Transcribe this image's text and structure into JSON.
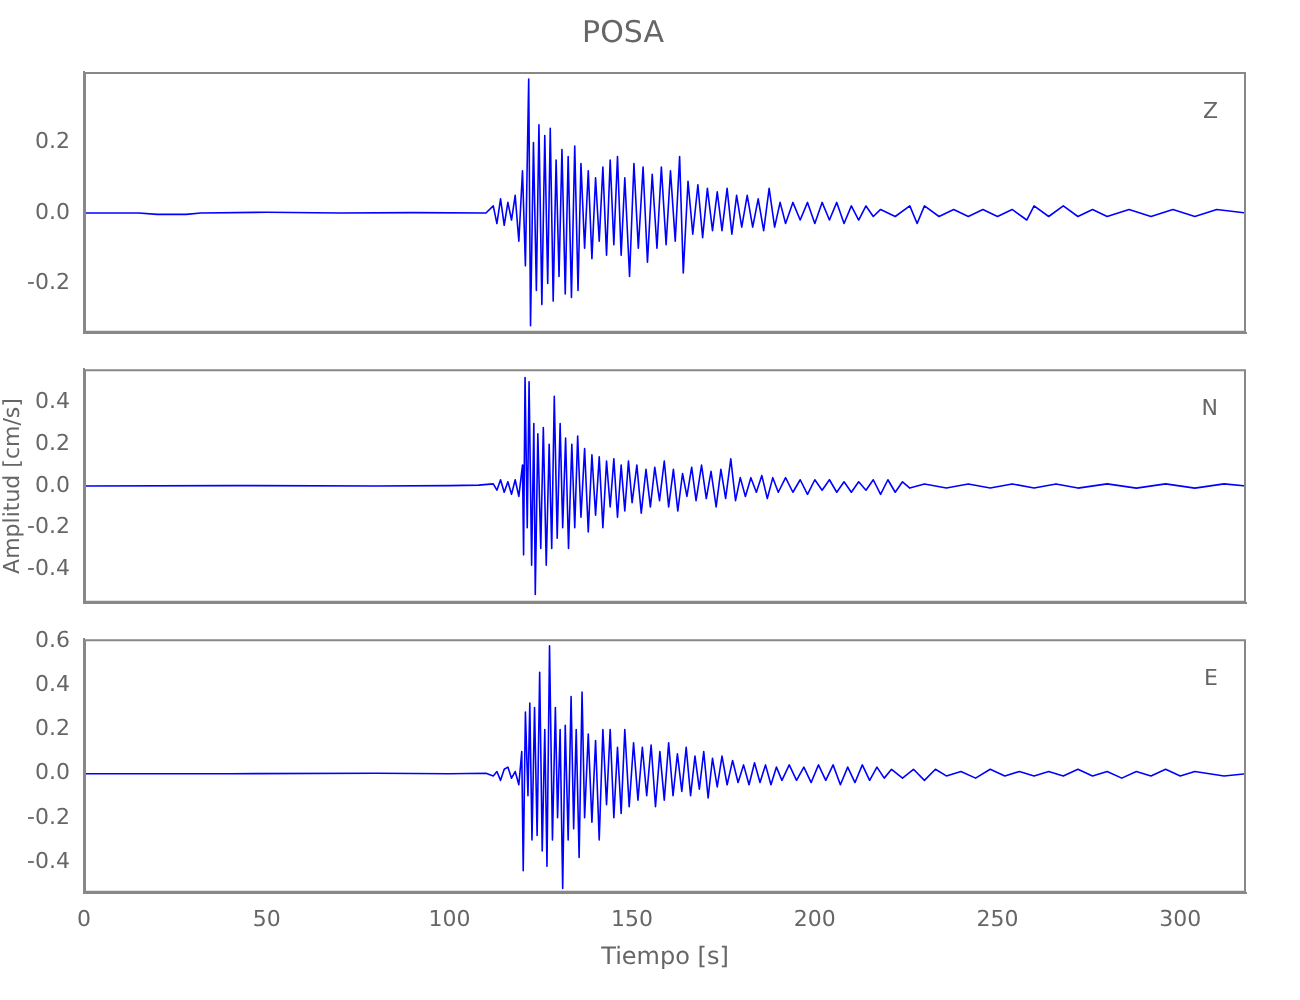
{
  "chart_data": [
    {
      "type": "line",
      "title": "POSA",
      "annotations": [
        "Z"
      ],
      "tick_labels": "y",
      "xlim": [
        0,
        318
      ],
      "xticks": [
        0,
        50,
        100,
        150,
        200,
        250,
        300
      ],
      "ylim": [
        -0.34,
        0.4
      ],
      "yticks": [
        {
          "value": -0.2,
          "label": "-0.2"
        },
        {
          "value": 0,
          "label": "0.0"
        },
        {
          "value": 0.2,
          "label": "0.2"
        }
      ],
      "series": [
        {
          "color": "#0000ff",
          "x": [
            0,
            15,
            20,
            28,
            32,
            50,
            70,
            90,
            110,
            112,
            113,
            114,
            115,
            116,
            117,
            118,
            119,
            120,
            120.8,
            121.7,
            122.2,
            123,
            123.8,
            124.5,
            125.3,
            126.1,
            126.9,
            127.6,
            128.4,
            129.2,
            130,
            130.8,
            131.7,
            132.5,
            133.4,
            134.3,
            135.2,
            136,
            137,
            138,
            139,
            140,
            141,
            142,
            143,
            144,
            145,
            146,
            147,
            148,
            149.3,
            150.5,
            151.7,
            153,
            154.2,
            155.5,
            156.8,
            158,
            159.3,
            160.5,
            161.8,
            163,
            164,
            165.3,
            166.6,
            168,
            169.3,
            170.6,
            172,
            173.3,
            174.6,
            176,
            177.3,
            178.6,
            180,
            181.5,
            183,
            184.5,
            186,
            187.5,
            189,
            190.5,
            192,
            194,
            196,
            198,
            200,
            202,
            204,
            206,
            208,
            210,
            212,
            214,
            216,
            218,
            222,
            226,
            228,
            230,
            234,
            238,
            242,
            246,
            250,
            254,
            258,
            260,
            264,
            268,
            272,
            276,
            280,
            286,
            292,
            298,
            304,
            310,
            318
          ],
          "values": [
            0,
            0,
            -0.004,
            -0.004,
            0,
            0.002,
            0,
            0.001,
            0,
            0.02,
            -0.03,
            0.04,
            -0.035,
            0.03,
            -0.02,
            0.05,
            -0.08,
            0.12,
            -0.15,
            0.38,
            -0.32,
            0.2,
            -0.22,
            0.25,
            -0.26,
            0.22,
            -0.2,
            0.24,
            -0.25,
            0.15,
            -0.18,
            0.18,
            -0.23,
            0.16,
            -0.24,
            0.19,
            -0.22,
            0.14,
            -0.1,
            0.12,
            -0.13,
            0.1,
            -0.08,
            0.13,
            -0.12,
            0.15,
            -0.09,
            0.16,
            -0.12,
            0.1,
            -0.18,
            0.14,
            -0.1,
            0.13,
            -0.14,
            0.11,
            -0.1,
            0.13,
            -0.09,
            0.12,
            -0.08,
            0.16,
            -0.17,
            0.09,
            -0.06,
            0.08,
            -0.07,
            0.07,
            -0.05,
            0.06,
            -0.05,
            0.07,
            -0.06,
            0.05,
            -0.04,
            0.05,
            -0.04,
            0.04,
            -0.05,
            0.07,
            -0.04,
            0.03,
            -0.03,
            0.03,
            -0.02,
            0.03,
            -0.03,
            0.03,
            -0.02,
            0.03,
            -0.03,
            0.02,
            -0.02,
            0.02,
            -0.01,
            0.01,
            -0.01,
            0.02,
            -0.03,
            0.02,
            -0.01,
            0.01,
            -0.01,
            0.01,
            -0.01,
            0.01,
            -0.02,
            0.02,
            -0.01,
            0.02,
            -0.01,
            0.01,
            -0.01,
            0.01,
            -0.01,
            0.01,
            -0.01,
            0.01,
            0
          ]
        }
      ]
    },
    {
      "type": "line",
      "ylabel": "Amplitud [cm/s]",
      "annotations": [
        "N"
      ],
      "tick_labels": "y",
      "xlim": [
        0,
        318
      ],
      "xticks": [
        0,
        50,
        100,
        150,
        200,
        250,
        300
      ],
      "ylim": [
        -0.56,
        0.56
      ],
      "yticks": [
        {
          "value": -0.4,
          "label": "-0.4"
        },
        {
          "value": -0.2,
          "label": "-0.2"
        },
        {
          "value": 0,
          "label": "0.0"
        },
        {
          "value": 0.2,
          "label": "0.2"
        },
        {
          "value": 0.4,
          "label": "0.4"
        }
      ],
      "series": [
        {
          "color": "#0000ff",
          "x": [
            0,
            40,
            80,
            100,
            108,
            112,
            113,
            114,
            115,
            116,
            117,
            118,
            119,
            120,
            120.3,
            120.7,
            121.3,
            121.8,
            122.5,
            123.1,
            123.5,
            124.2,
            125,
            125.7,
            126.5,
            127.3,
            128,
            128.7,
            129.5,
            130.3,
            131,
            131.8,
            132.6,
            133.5,
            134.3,
            135.1,
            136,
            137,
            138,
            139,
            140,
            141,
            142,
            143,
            144,
            145,
            146,
            147,
            148,
            149,
            150,
            151.3,
            152.5,
            153.8,
            155,
            156.2,
            157.5,
            158.8,
            160,
            161.3,
            162.5,
            163.8,
            165,
            166.3,
            167.5,
            169,
            170.3,
            171.6,
            173,
            174.3,
            175.6,
            177,
            178.3,
            179.6,
            181,
            182.5,
            184,
            185.5,
            187,
            188.5,
            190,
            192,
            194,
            196,
            198,
            200,
            202,
            204,
            206,
            208,
            210,
            212,
            214,
            216,
            218,
            220,
            222,
            224,
            226,
            230,
            236,
            242,
            248,
            254,
            260,
            266,
            272,
            280,
            288,
            296,
            304,
            312,
            318
          ],
          "values": [
            0,
            0.002,
            0,
            0.002,
            0.004,
            0.01,
            -0.02,
            0.03,
            -0.03,
            0.02,
            -0.04,
            0.03,
            -0.05,
            0.1,
            -0.33,
            0.52,
            -0.2,
            0.5,
            -0.38,
            0.3,
            -0.52,
            0.25,
            -0.3,
            0.28,
            -0.38,
            0.2,
            -0.3,
            0.43,
            -0.25,
            0.3,
            -0.2,
            0.23,
            -0.3,
            0.2,
            -0.2,
            0.24,
            -0.15,
            0.18,
            -0.22,
            0.15,
            -0.14,
            0.14,
            -0.2,
            0.12,
            -0.1,
            0.13,
            -0.15,
            0.1,
            -0.12,
            0.12,
            -0.08,
            0.1,
            -0.13,
            0.08,
            -0.1,
            0.09,
            -0.07,
            0.12,
            -0.1,
            0.08,
            -0.12,
            0.06,
            -0.05,
            0.09,
            -0.07,
            0.1,
            -0.06,
            0.07,
            -0.1,
            0.08,
            -0.06,
            0.13,
            -0.07,
            0.04,
            -0.05,
            0.04,
            -0.03,
            0.05,
            -0.06,
            0.04,
            -0.03,
            0.04,
            -0.03,
            0.03,
            -0.04,
            0.03,
            -0.02,
            0.03,
            -0.03,
            0.02,
            -0.03,
            0.02,
            -0.02,
            0.03,
            -0.04,
            0.03,
            -0.03,
            0.02,
            -0.01,
            0.01,
            -0.01,
            0.01,
            -0.01,
            0.01,
            -0.01,
            0.01,
            -0.01,
            0.01,
            -0.01,
            0.01,
            -0.01,
            0.01,
            0
          ]
        }
      ]
    },
    {
      "type": "line",
      "xlabel": "Tiempo [s]",
      "annotations": [
        "E"
      ],
      "xlim": [
        0,
        318
      ],
      "xticks": [
        0,
        50,
        100,
        150,
        200,
        250,
        300
      ],
      "ylim": [
        -0.54,
        0.61
      ],
      "yticks": [
        {
          "value": -0.4,
          "label": "-0.4"
        },
        {
          "value": -0.2,
          "label": "-0.2"
        },
        {
          "value": 0,
          "label": "0.0"
        },
        {
          "value": 0.2,
          "label": "0.2"
        },
        {
          "value": 0.4,
          "label": "0.4"
        },
        {
          "value": 0.6,
          "label": "0.6"
        }
      ],
      "series": [
        {
          "color": "#0000ff",
          "x": [
            0,
            40,
            80,
            100,
            110,
            112,
            113,
            114,
            115,
            116,
            117,
            118,
            119,
            119.8,
            120.2,
            120.8,
            121.5,
            122,
            122.6,
            123.3,
            124,
            124.7,
            125.4,
            126.1,
            126.7,
            127.4,
            128.2,
            129,
            129.6,
            130.3,
            131,
            131.7,
            132.5,
            133.3,
            134,
            134.7,
            135.5,
            136.3,
            137,
            138,
            139,
            140,
            141,
            142,
            143,
            144,
            145,
            146,
            147,
            148,
            149.2,
            150.4,
            151.6,
            152.8,
            154,
            155.2,
            156.4,
            157.6,
            158.8,
            160,
            161.2,
            162.4,
            163.6,
            164.8,
            166,
            167.2,
            168.4,
            169.6,
            170.8,
            172,
            173.3,
            174.6,
            176,
            177.5,
            179,
            180.5,
            182,
            183.5,
            185,
            186.5,
            188,
            189.5,
            191,
            193,
            195,
            197,
            199,
            201,
            203,
            205,
            207,
            209,
            211,
            213,
            215,
            217,
            219,
            221,
            224,
            227,
            230,
            233,
            236,
            240,
            244,
            248,
            252,
            256,
            260,
            264,
            268,
            272,
            276,
            280,
            284,
            288,
            292,
            296,
            300,
            304,
            308,
            312,
            318
          ],
          "values": [
            0,
            0,
            0.002,
            0,
            0.002,
            -0.01,
            0.01,
            -0.03,
            0.02,
            0.03,
            -0.02,
            0.01,
            -0.05,
            0.1,
            -0.44,
            0.28,
            -0.1,
            0.32,
            -0.3,
            0.3,
            -0.28,
            0.46,
            -0.35,
            0.2,
            -0.42,
            0.58,
            -0.3,
            0.3,
            -0.2,
            0.2,
            -0.52,
            0.22,
            -0.3,
            0.35,
            -0.25,
            0.2,
            -0.38,
            0.37,
            -0.2,
            0.18,
            -0.22,
            0.15,
            -0.3,
            0.2,
            -0.14,
            0.2,
            -0.2,
            0.12,
            -0.18,
            0.2,
            -0.15,
            0.14,
            -0.12,
            0.12,
            -0.1,
            0.13,
            -0.15,
            0.1,
            -0.12,
            0.14,
            -0.1,
            0.09,
            -0.08,
            0.12,
            -0.1,
            0.08,
            -0.07,
            0.1,
            -0.11,
            0.07,
            -0.06,
            0.08,
            -0.05,
            0.06,
            -0.04,
            0.04,
            -0.05,
            0.05,
            -0.04,
            0.04,
            -0.05,
            0.03,
            -0.03,
            0.04,
            -0.03,
            0.03,
            -0.04,
            0.04,
            -0.03,
            0.04,
            -0.05,
            0.03,
            -0.04,
            0.04,
            -0.03,
            0.03,
            -0.02,
            0.02,
            -0.02,
            0.02,
            -0.03,
            0.02,
            -0.01,
            0.01,
            -0.02,
            0.02,
            -0.01,
            0.01,
            -0.01,
            0.01,
            -0.01,
            0.02,
            -0.01,
            0.01,
            -0.02,
            0.01,
            -0.01,
            0.02,
            -0.01,
            0.01,
            0,
            -0.01,
            0
          ]
        }
      ]
    }
  ]
}
